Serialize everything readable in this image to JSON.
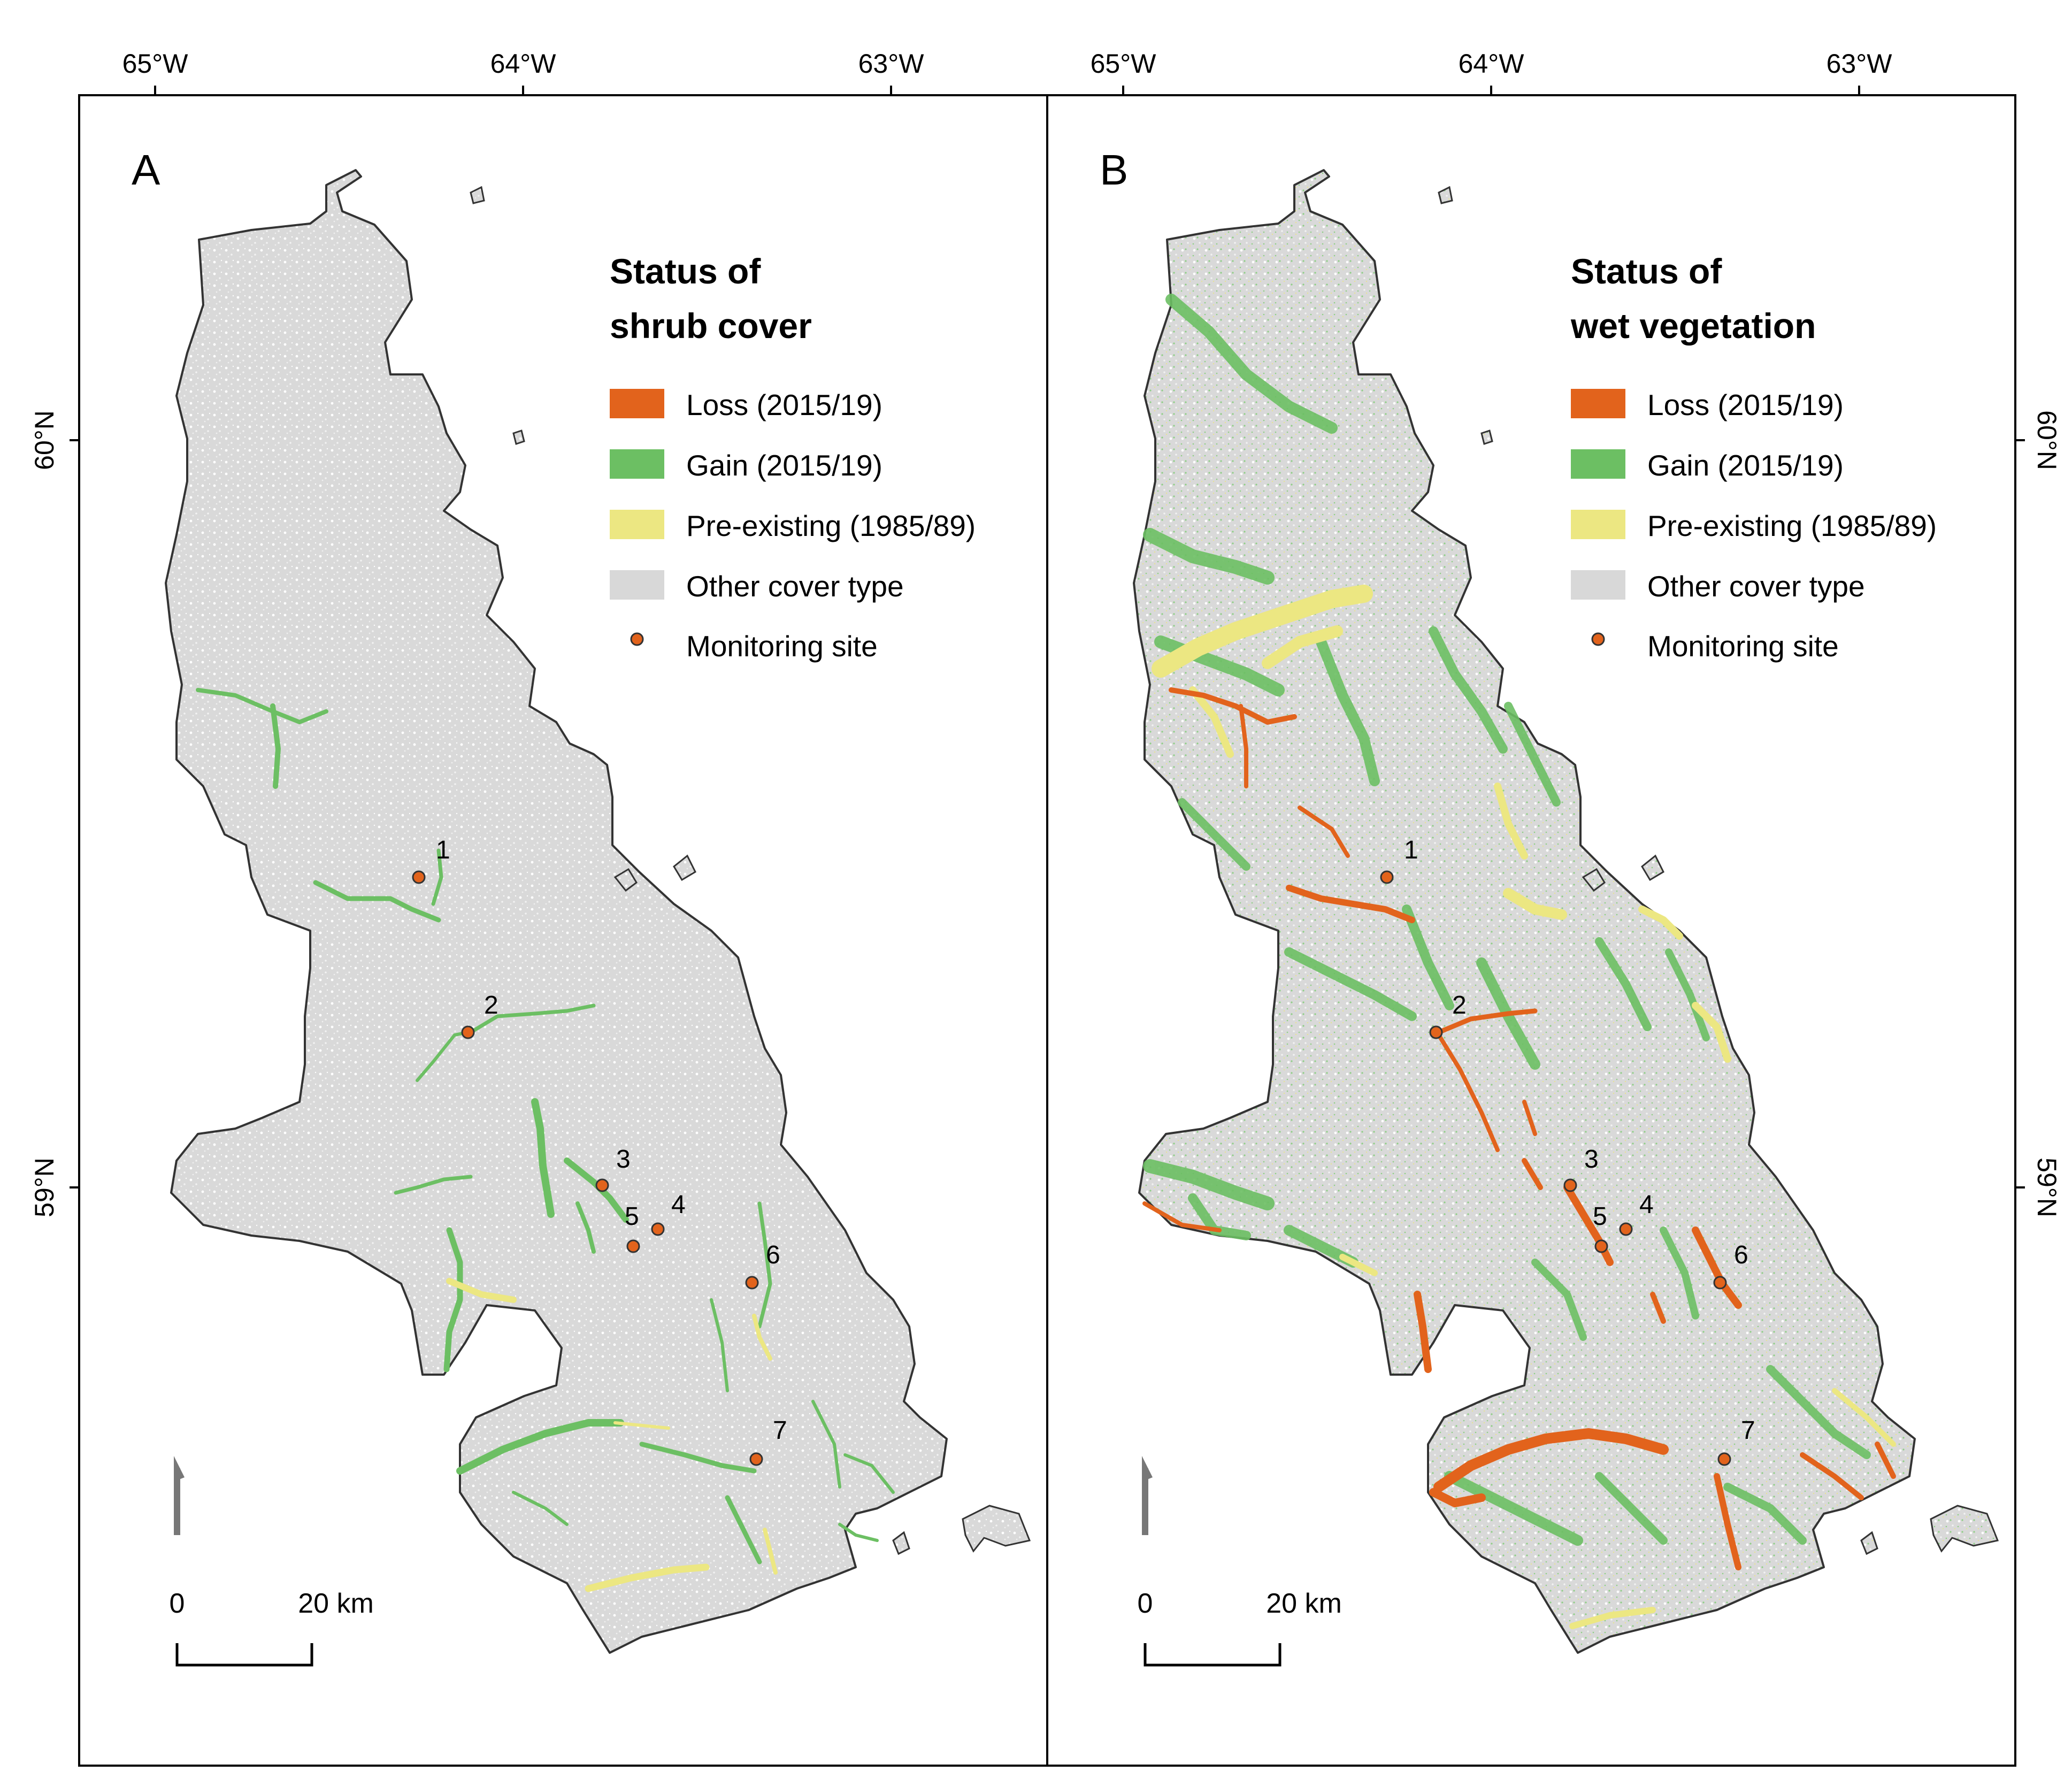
{
  "colors": {
    "loss": "#e2631c",
    "gain": "#6cbf63",
    "pre_existing": "#ece782",
    "other": "#d8d8d8",
    "site_fill": "#e2631c",
    "frame": "#000000"
  },
  "axes": {
    "top_ticks": [
      "65°W",
      "64°W",
      "63°W"
    ],
    "left_ticks": [
      "60°N",
      "59°N"
    ],
    "right_ticks": [
      "60°N",
      "59°N"
    ]
  },
  "panels": [
    {
      "letter": "A",
      "legend": {
        "title_line1": "Status of",
        "title_line2": "shrub cover",
        "items": [
          {
            "label": "Loss (2015/19)",
            "color_key": "loss"
          },
          {
            "label": "Gain (2015/19)",
            "color_key": "gain"
          },
          {
            "label": "Pre-existing (1985/89)",
            "color_key": "pre_existing"
          },
          {
            "label": "Other cover type",
            "color_key": "other"
          },
          {
            "label": "Monitoring site",
            "color_key": "site_fill"
          }
        ]
      },
      "scale": {
        "start": "0",
        "end": "20 km"
      }
    },
    {
      "letter": "B",
      "legend": {
        "title_line1": "Status of",
        "title_line2": "wet vegetation",
        "items": [
          {
            "label": "Loss (2015/19)",
            "color_key": "loss"
          },
          {
            "label": "Gain (2015/19)",
            "color_key": "gain"
          },
          {
            "label": "Pre-existing (1985/89)",
            "color_key": "pre_existing"
          },
          {
            "label": "Other cover type",
            "color_key": "other"
          },
          {
            "label": "Monitoring site",
            "color_key": "site_fill"
          }
        ]
      },
      "scale": {
        "start": "0",
        "end": "20 km"
      }
    }
  ],
  "sites": [
    "1",
    "2",
    "3",
    "4",
    "5",
    "6",
    "7"
  ]
}
